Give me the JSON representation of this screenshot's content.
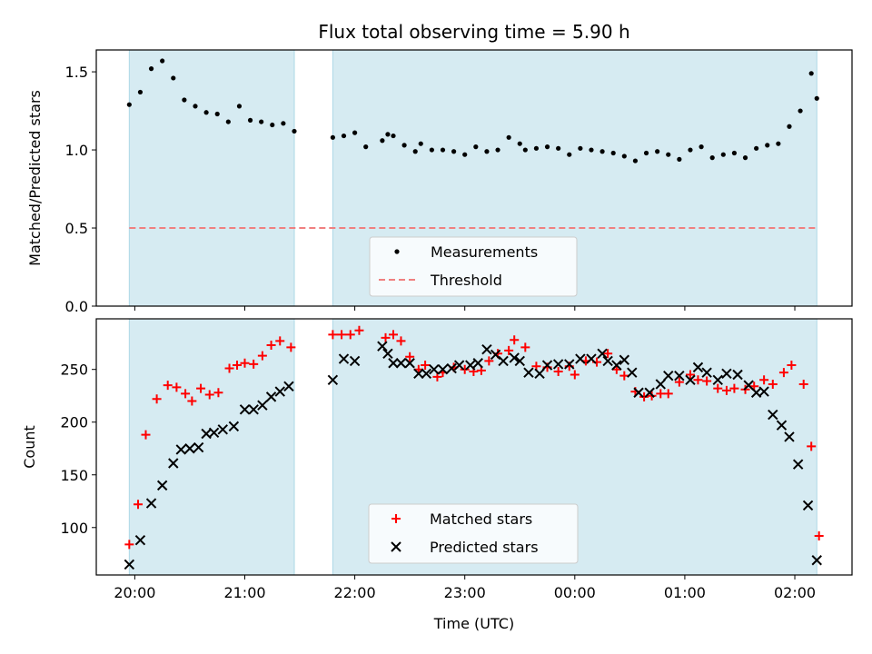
{
  "figure": {
    "title": "Flux total observing time = 5.90 h"
  },
  "colors": {
    "band": "#add8e6",
    "threshold": "#f08080",
    "matched": "#ff0000",
    "predicted": "#000000",
    "measurement": "#000000"
  },
  "chart_data": [
    {
      "type": "scatter",
      "title": "Flux total observing time = 5.90 h",
      "xlabel": "",
      "ylabel": "Matched/Predicted stars",
      "ylim": [
        0,
        1.64
      ],
      "yticks": [
        0.0,
        0.5,
        1.0,
        1.5
      ],
      "ytick_labels": [
        "0.0",
        "0.5",
        "1.0",
        "1.5"
      ],
      "x_unit": "hours since 20:00 UTC (Time (UTC) axis)",
      "xlim": [
        -0.35,
        6.52
      ],
      "shaded_intervals": [
        [
          -0.05,
          1.45
        ],
        [
          1.8,
          6.2
        ]
      ],
      "legend": {
        "placement": "bottom-center",
        "entries": [
          "Measurements",
          "Threshold"
        ]
      },
      "threshold": {
        "name": "Threshold",
        "y": 0.5,
        "x_range": [
          -0.05,
          6.2
        ]
      },
      "series": [
        {
          "name": "Measurements",
          "x": [
            -0.05,
            0.05,
            0.15,
            0.25,
            0.35,
            0.45,
            0.55,
            0.65,
            0.75,
            0.85,
            0.95,
            1.05,
            1.15,
            1.25,
            1.35,
            1.45,
            1.8,
            1.9,
            2.0,
            2.1,
            2.25,
            2.3,
            2.35,
            2.45,
            2.55,
            2.6,
            2.7,
            2.8,
            2.9,
            3.0,
            3.1,
            3.2,
            3.3,
            3.4,
            3.5,
            3.55,
            3.65,
            3.75,
            3.85,
            3.95,
            4.05,
            4.15,
            4.25,
            4.35,
            4.45,
            4.55,
            4.65,
            4.75,
            4.85,
            4.95,
            5.05,
            5.15,
            5.25,
            5.35,
            5.45,
            5.55,
            5.65,
            5.75,
            5.85,
            5.95,
            6.05,
            6.15,
            6.2
          ],
          "y": [
            1.29,
            1.37,
            1.52,
            1.57,
            1.46,
            1.32,
            1.28,
            1.24,
            1.23,
            1.18,
            1.28,
            1.19,
            1.18,
            1.16,
            1.17,
            1.12,
            1.08,
            1.09,
            1.11,
            1.02,
            1.06,
            1.1,
            1.09,
            1.03,
            0.99,
            1.04,
            1.0,
            1.0,
            0.99,
            0.97,
            1.02,
            0.99,
            1.0,
            1.08,
            1.04,
            1.0,
            1.01,
            1.02,
            1.01,
            0.97,
            1.01,
            1.0,
            0.99,
            0.98,
            0.96,
            0.93,
            0.98,
            0.99,
            0.97,
            0.94,
            1.0,
            1.02,
            0.95,
            0.97,
            0.98,
            0.95,
            1.01,
            1.03,
            1.04,
            1.15,
            1.25,
            1.49,
            1.33
          ]
        }
      ]
    },
    {
      "type": "scatter",
      "title": "",
      "xlabel": "Time (UTC)",
      "ylabel": "Count",
      "ylim": [
        55,
        298
      ],
      "yticks": [
        100,
        150,
        200,
        250
      ],
      "ytick_labels": [
        "100",
        "150",
        "200",
        "250"
      ],
      "x_unit": "hours since 20:00 UTC (Time (UTC) axis)",
      "xlim": [
        -0.35,
        6.52
      ],
      "xticks": [
        0,
        1,
        2,
        3,
        4,
        5,
        6
      ],
      "xtick_labels": [
        "20:00",
        "21:00",
        "22:00",
        "23:00",
        "00:00",
        "01:00",
        "02:00"
      ],
      "shaded_intervals": [
        [
          -0.05,
          1.45
        ],
        [
          1.8,
          6.2
        ]
      ],
      "legend": {
        "placement": "bottom-center",
        "entries": [
          "Matched stars",
          "Predicted stars"
        ]
      },
      "series": [
        {
          "name": "Matched stars",
          "x": [
            -0.05,
            0.03,
            0.1,
            0.2,
            0.3,
            0.38,
            0.46,
            0.52,
            0.6,
            0.68,
            0.76,
            0.86,
            0.93,
            1.0,
            1.08,
            1.16,
            1.24,
            1.32,
            1.42,
            1.8,
            1.88,
            1.96,
            2.04,
            2.28,
            2.35,
            2.42,
            2.5,
            2.58,
            2.64,
            2.75,
            2.8,
            2.9,
            3.0,
            3.08,
            3.15,
            3.22,
            3.3,
            3.4,
            3.45,
            3.55,
            3.65,
            3.75,
            3.85,
            3.95,
            4.0,
            4.1,
            4.2,
            4.3,
            4.38,
            4.45,
            4.55,
            4.63,
            4.7,
            4.78,
            4.85,
            4.95,
            5.05,
            5.12,
            5.2,
            5.3,
            5.38,
            5.45,
            5.55,
            5.63,
            5.72,
            5.8,
            5.9,
            5.97,
            6.08,
            6.15,
            6.22
          ],
          "y": [
            84,
            122,
            188,
            222,
            235,
            233,
            227,
            220,
            232,
            226,
            228,
            251,
            254,
            256,
            255,
            263,
            273,
            277,
            271,
            283,
            283,
            283,
            287,
            280,
            283,
            277,
            262,
            250,
            254,
            243,
            247,
            252,
            250,
            248,
            249,
            258,
            265,
            268,
            278,
            271,
            253,
            252,
            248,
            253,
            245,
            258,
            257,
            265,
            250,
            244,
            229,
            224,
            225,
            227,
            227,
            238,
            245,
            240,
            239,
            232,
            230,
            232,
            231,
            234,
            240,
            236,
            247,
            254,
            236,
            177,
            92
          ]
        },
        {
          "name": "Predicted stars",
          "x": [
            -0.05,
            0.05,
            0.15,
            0.25,
            0.35,
            0.42,
            0.5,
            0.58,
            0.65,
            0.72,
            0.8,
            0.9,
            1.0,
            1.08,
            1.16,
            1.24,
            1.32,
            1.4,
            1.8,
            1.9,
            2.0,
            2.25,
            2.3,
            2.35,
            2.42,
            2.5,
            2.58,
            2.65,
            2.72,
            2.8,
            2.88,
            2.95,
            3.05,
            3.12,
            3.2,
            3.28,
            3.35,
            3.45,
            3.5,
            3.58,
            3.68,
            3.75,
            3.85,
            3.95,
            4.05,
            4.15,
            4.25,
            4.3,
            4.38,
            4.45,
            4.52,
            4.58,
            4.68,
            4.78,
            4.85,
            4.95,
            5.05,
            5.12,
            5.2,
            5.3,
            5.38,
            5.48,
            5.58,
            5.65,
            5.72,
            5.8,
            5.88,
            5.95,
            6.03,
            6.12,
            6.2
          ],
          "y": [
            65,
            88,
            123,
            140,
            161,
            174,
            175,
            176,
            189,
            190,
            193,
            196,
            212,
            212,
            216,
            224,
            229,
            234,
            240,
            260,
            258,
            272,
            265,
            256,
            256,
            256,
            246,
            246,
            250,
            250,
            251,
            254,
            254,
            256,
            269,
            264,
            258,
            261,
            258,
            247,
            246,
            254,
            255,
            255,
            260,
            260,
            265,
            258,
            254,
            259,
            247,
            228,
            228,
            236,
            244,
            244,
            240,
            252,
            247,
            240,
            246,
            245,
            235,
            228,
            229,
            207,
            197,
            186,
            160,
            121,
            69
          ]
        }
      ]
    }
  ]
}
